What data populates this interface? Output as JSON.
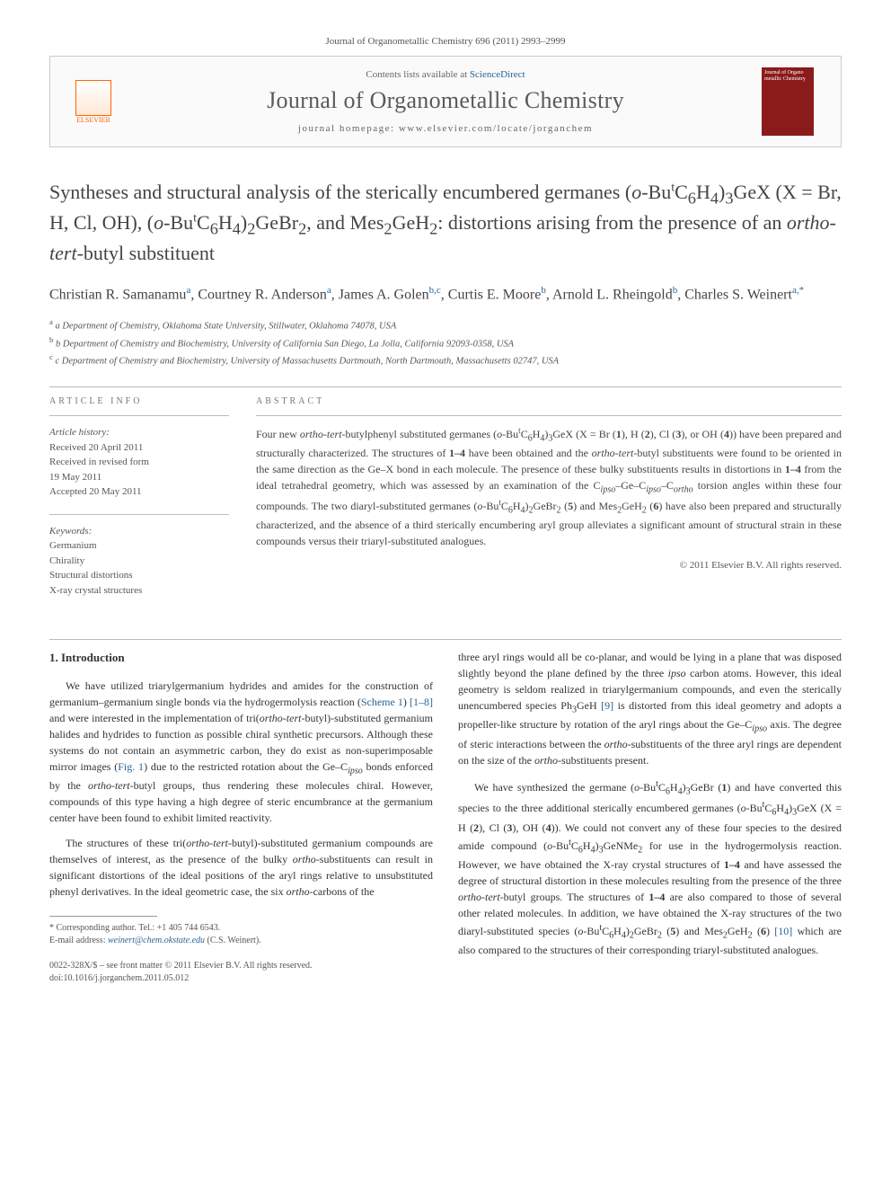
{
  "citation": "Journal of Organometallic Chemistry 696 (2011) 2993–2999",
  "masthead": {
    "contents_prefix": "Contents lists available at ",
    "contents_link": "ScienceDirect",
    "journal_name": "Journal of Organometallic Chemistry",
    "homepage_prefix": "journal homepage: ",
    "homepage_url": "www.elsevier.com/locate/jorganchem",
    "publisher_label": "ELSEVIER",
    "cover_text": "Journal of Organo metallic Chemistry"
  },
  "title_html": "Syntheses and structural analysis of the sterically encumbered germanes (<span class='italic'>o</span>-Bu<sup>t</sup>C<sub>6</sub>H<sub>4</sub>)<sub>3</sub>GeX (X = Br, H, Cl, OH), (<span class='italic'>o</span>-Bu<sup>t</sup>C<sub>6</sub>H<sub>4</sub>)<sub>2</sub>GeBr<sub>2</sub>, and Mes<sub>2</sub>GeH<sub>2</sub>: distortions arising from the presence of an <span class='italic'>ortho-tert</span>-butyl substituent",
  "authors_html": "Christian R. Samanamu<sup>a</sup>, Courtney R. Anderson<sup>a</sup>, James A. Golen<sup>b,c</sup>, Curtis E. Moore<sup>b</sup>, Arnold L. Rheingold<sup>b</sup>, Charles S. Weinert<sup>a,*</sup>",
  "affiliations": [
    "a Department of Chemistry, Oklahoma State University, Stillwater, Oklahoma 74078, USA",
    "b Department of Chemistry and Biochemistry, University of California San Diego, La Jolla, California 92093-0358, USA",
    "c Department of Chemistry and Biochemistry, University of Massachusetts Dartmouth, North Dartmouth, Massachusetts 02747, USA"
  ],
  "article_info": {
    "label": "ARTICLE INFO",
    "history_label": "Article history:",
    "history": [
      "Received 20 April 2011",
      "Received in revised form",
      "19 May 2011",
      "Accepted 20 May 2011"
    ],
    "keywords_label": "Keywords:",
    "keywords": [
      "Germanium",
      "Chirality",
      "Structural distortions",
      "X-ray crystal structures"
    ]
  },
  "abstract": {
    "label": "ABSTRACT",
    "text_html": "Four new <span class='italic'>ortho-tert</span>-butylphenyl substituted germanes (<span class='italic'>o</span>-Bu<sup>t</sup>C<sub>6</sub>H<sub>4</sub>)<sub>3</sub>GeX (X = Br (<b>1</b>), H (<b>2</b>), Cl (<b>3</b>), or OH (<b>4</b>)) have been prepared and structurally characterized. The structures of <b>1–4</b> have been obtained and the <span class='italic'>ortho-tert</span>-butyl substituents were found to be oriented in the same direction as the Ge–X bond in each molecule. The presence of these bulky substituents results in distortions in <b>1–4</b> from the ideal tetrahedral geometry, which was assessed by an examination of the C<sub><i>ipso</i></sub>–Ge–C<sub><i>ipso</i></sub>–C<sub><i>ortho</i></sub> torsion angles within these four compounds. The two diaryl-substituted germanes (<span class='italic'>o</span>-Bu<sup>t</sup>C<sub>6</sub>H<sub>4</sub>)<sub>2</sub>GeBr<sub>2</sub> (<b>5</b>) and Mes<sub>2</sub>GeH<sub>2</sub> (<b>6</b>) have also been prepared and structurally characterized, and the absence of a third sterically encumbering aryl group alleviates a significant amount of structural strain in these compounds versus their triaryl-substituted analogues.",
    "copyright": "© 2011 Elsevier B.V. All rights reserved."
  },
  "body": {
    "heading": "1. Introduction",
    "col1_paras_html": [
      "We have utilized triarylgermanium hydrides and amides for the construction of germanium–germanium single bonds via the hydrogermolysis reaction (<a href='#'>Scheme 1</a>) <a href='#'>[1–8]</a> and were interested in the implementation of tri(<span class='italic'>ortho-tert</span>-butyl)-substituted germanium halides and hydrides to function as possible chiral synthetic precursors. Although these systems do not contain an asymmetric carbon, they do exist as non-superimposable mirror images (<a href='#'>Fig. 1</a>) due to the restricted rotation about the Ge–C<sub><i>ipso</i></sub> bonds enforced by the <span class='italic'>ortho-tert</span>-butyl groups, thus rendering these molecules chiral. However, compounds of this type having a high degree of steric encumbrance at the germanium center have been found to exhibit limited reactivity.",
      "The structures of these tri(<span class='italic'>ortho-tert</span>-butyl)-substituted germanium compounds are themselves of interest, as the presence of the bulky <span class='italic'>ortho</span>-substituents can result in significant distortions of the ideal positions of the aryl rings relative to unsubstituted phenyl derivatives. In the ideal geometric case, the six <span class='italic'>ortho</span>-carbons of the"
    ],
    "col2_paras_html": [
      "three aryl rings would all be co-planar, and would be lying in a plane that was disposed slightly beyond the plane defined by the three <span class='italic'>ipso</span> carbon atoms. However, this ideal geometry is seldom realized in triarylgermanium compounds, and even the sterically unencumbered species Ph<sub>3</sub>GeH <a href='#'>[9]</a> is distorted from this ideal geometry and adopts a propeller-like structure by rotation of the aryl rings about the Ge–C<sub><i>ipso</i></sub> axis. The degree of steric interactions between the <span class='italic'>ortho</span>-substituents of the three aryl rings are dependent on the size of the <span class='italic'>ortho</span>-substituents present.",
      "We have synthesized the germane (<span class='italic'>o</span>-Bu<sup>t</sup>C<sub>6</sub>H<sub>4</sub>)<sub>3</sub>GeBr (<b>1</b>) and have converted this species to the three additional sterically encumbered germanes (<span class='italic'>o</span>-Bu<sup>t</sup>C<sub>6</sub>H<sub>4</sub>)<sub>3</sub>GeX (X = H (<b>2</b>), Cl (<b>3</b>), OH (<b>4</b>)). We could not convert any of these four species to the desired amide compound (<span class='italic'>o</span>-Bu<sup>t</sup>C<sub>6</sub>H<sub>4</sub>)<sub>3</sub>GeNMe<sub>2</sub> for use in the hydrogermolysis reaction. However, we have obtained the X-ray crystal structures of <b>1–4</b> and have assessed the degree of structural distortion in these molecules resulting from the presence of the three <span class='italic'>ortho-tert</span>-butyl groups. The structures of <b>1–4</b> are also compared to those of several other related molecules. In addition, we have obtained the X-ray structures of the two diaryl-substituted species (<span class='italic'>o</span>-Bu<sup>t</sup>C<sub>6</sub>H<sub>4</sub>)<sub>2</sub>GeBr<sub>2</sub> (<b>5</b>) and Mes<sub>2</sub>GeH<sub>2</sub> (<b>6</b>) <a href='#'>[10]</a> which are also compared to the structures of their corresponding triaryl-substituted analogues."
    ]
  },
  "footnote": {
    "corresponding": "* Corresponding author. Tel.: +1 405 744 6543.",
    "email_label": "E-mail address:",
    "email": "weinert@chem.okstate.edu",
    "email_suffix": "(C.S. Weinert)."
  },
  "footer": {
    "line1": "0022-328X/$ – see front matter © 2011 Elsevier B.V. All rights reserved.",
    "line2": "doi:10.1016/j.jorganchem.2011.05.012"
  }
}
